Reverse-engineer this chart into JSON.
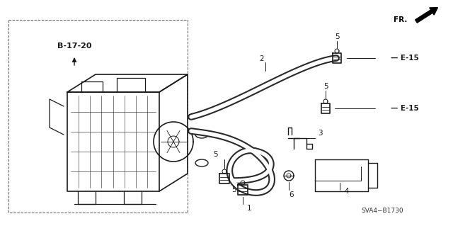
{
  "bg_color": "#ffffff",
  "line_color": "#1a1a1a",
  "fig_width": 6.4,
  "fig_height": 3.19,
  "dpi": 100,
  "labels": {
    "b1720": "B-17-20",
    "e15_1": "E-15",
    "e15_2": "E-15",
    "sva4": "SVA4−B1730",
    "fr": "FR.",
    "num1": "1",
    "num2": "2",
    "num3": "3",
    "num4": "4",
    "num6": "6"
  }
}
